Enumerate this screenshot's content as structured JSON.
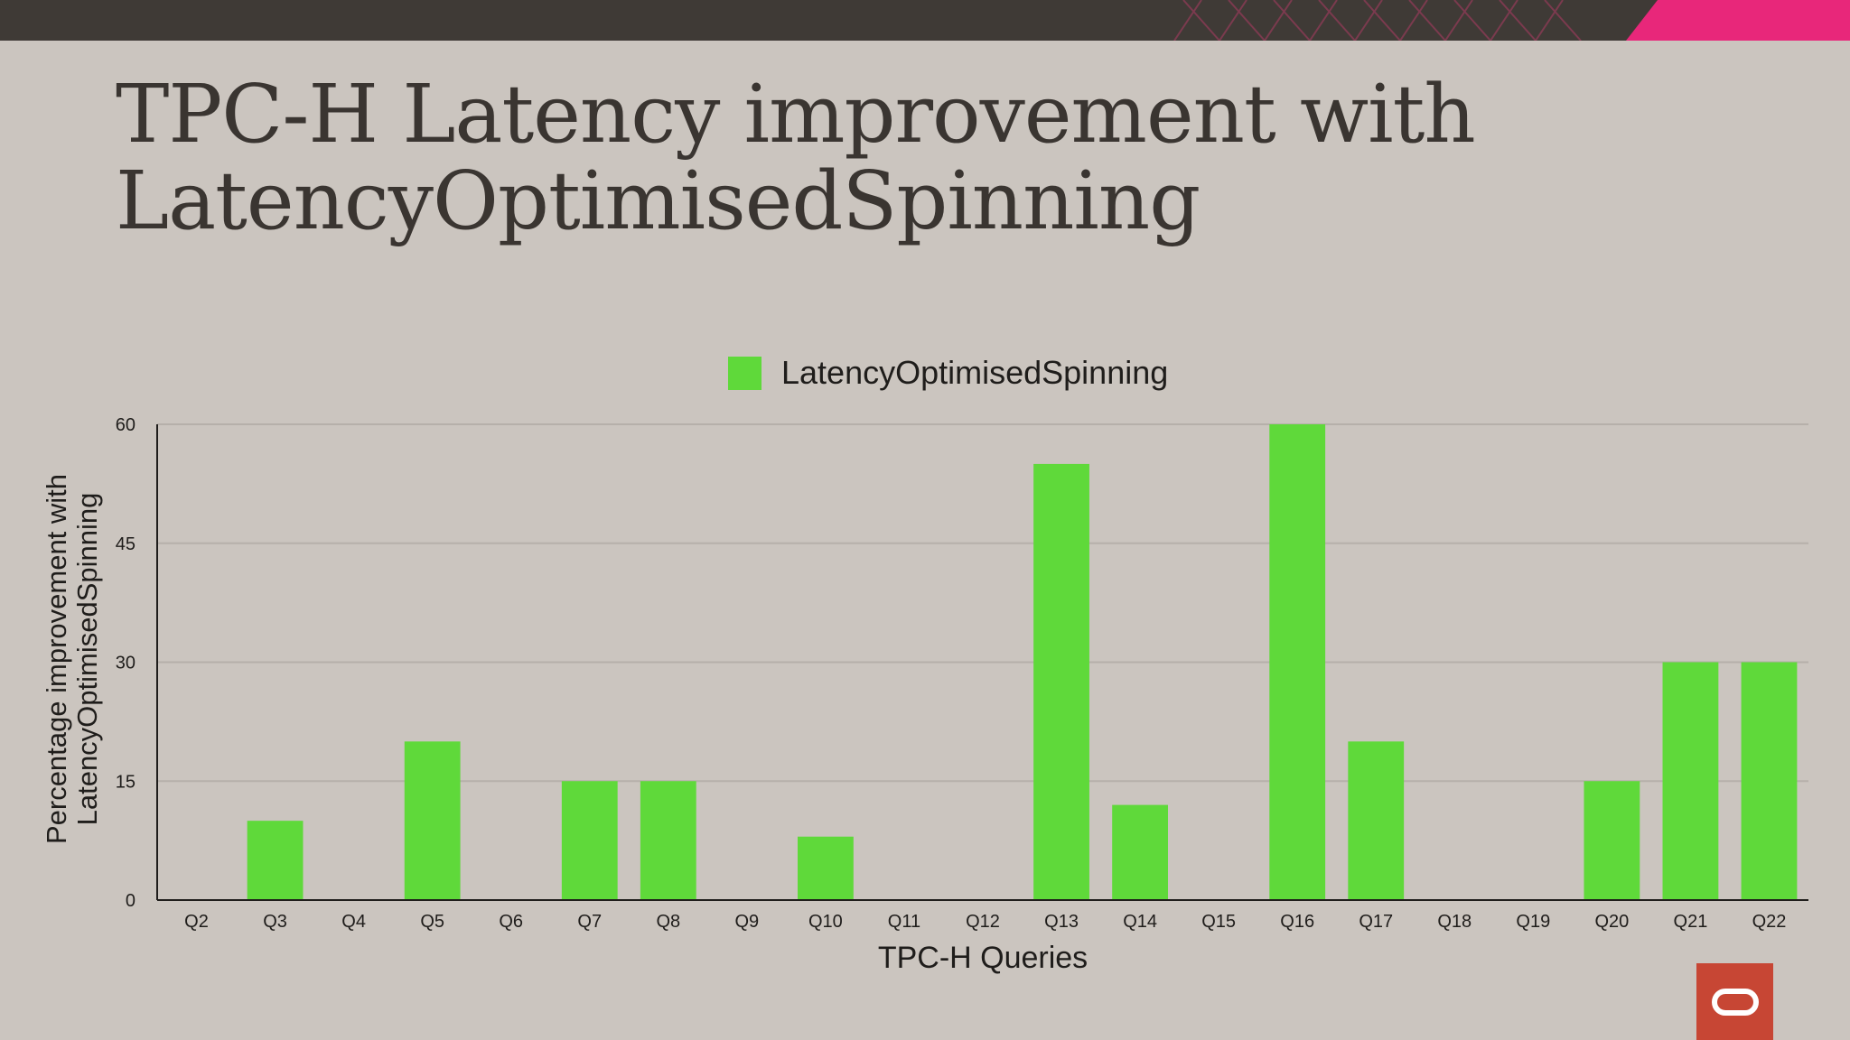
{
  "slide": {
    "title_line1": "TPC-H Latency improvement with",
    "title_line2": "LatencyOptimisedSpinning",
    "logo_icon": "oracle-logo-icon",
    "accent_color": "#e8277a",
    "logo_color": "#c74634"
  },
  "chart_data": {
    "type": "bar",
    "categories": [
      "Q2",
      "Q3",
      "Q4",
      "Q5",
      "Q6",
      "Q7",
      "Q8",
      "Q9",
      "Q10",
      "Q11",
      "Q12",
      "Q13",
      "Q14",
      "Q15",
      "Q16",
      "Q17",
      "Q18",
      "Q19",
      "Q20",
      "Q21",
      "Q22"
    ],
    "series": [
      {
        "name": "LatencyOptimisedSpinning",
        "color": "#5fd93a",
        "values": [
          0,
          10,
          0,
          20,
          0,
          15,
          15,
          0,
          8,
          0,
          0,
          55,
          12,
          0,
          60,
          20,
          0,
          0,
          15,
          30,
          30
        ]
      }
    ],
    "xlabel": "TPC-H Queries",
    "ylabel": "Percentage improvement with LatencyOptimisedSpinning",
    "ylim": [
      0,
      60
    ],
    "yticks": [
      0,
      15,
      30,
      45,
      60
    ],
    "grid": true,
    "legend": "top-center"
  }
}
